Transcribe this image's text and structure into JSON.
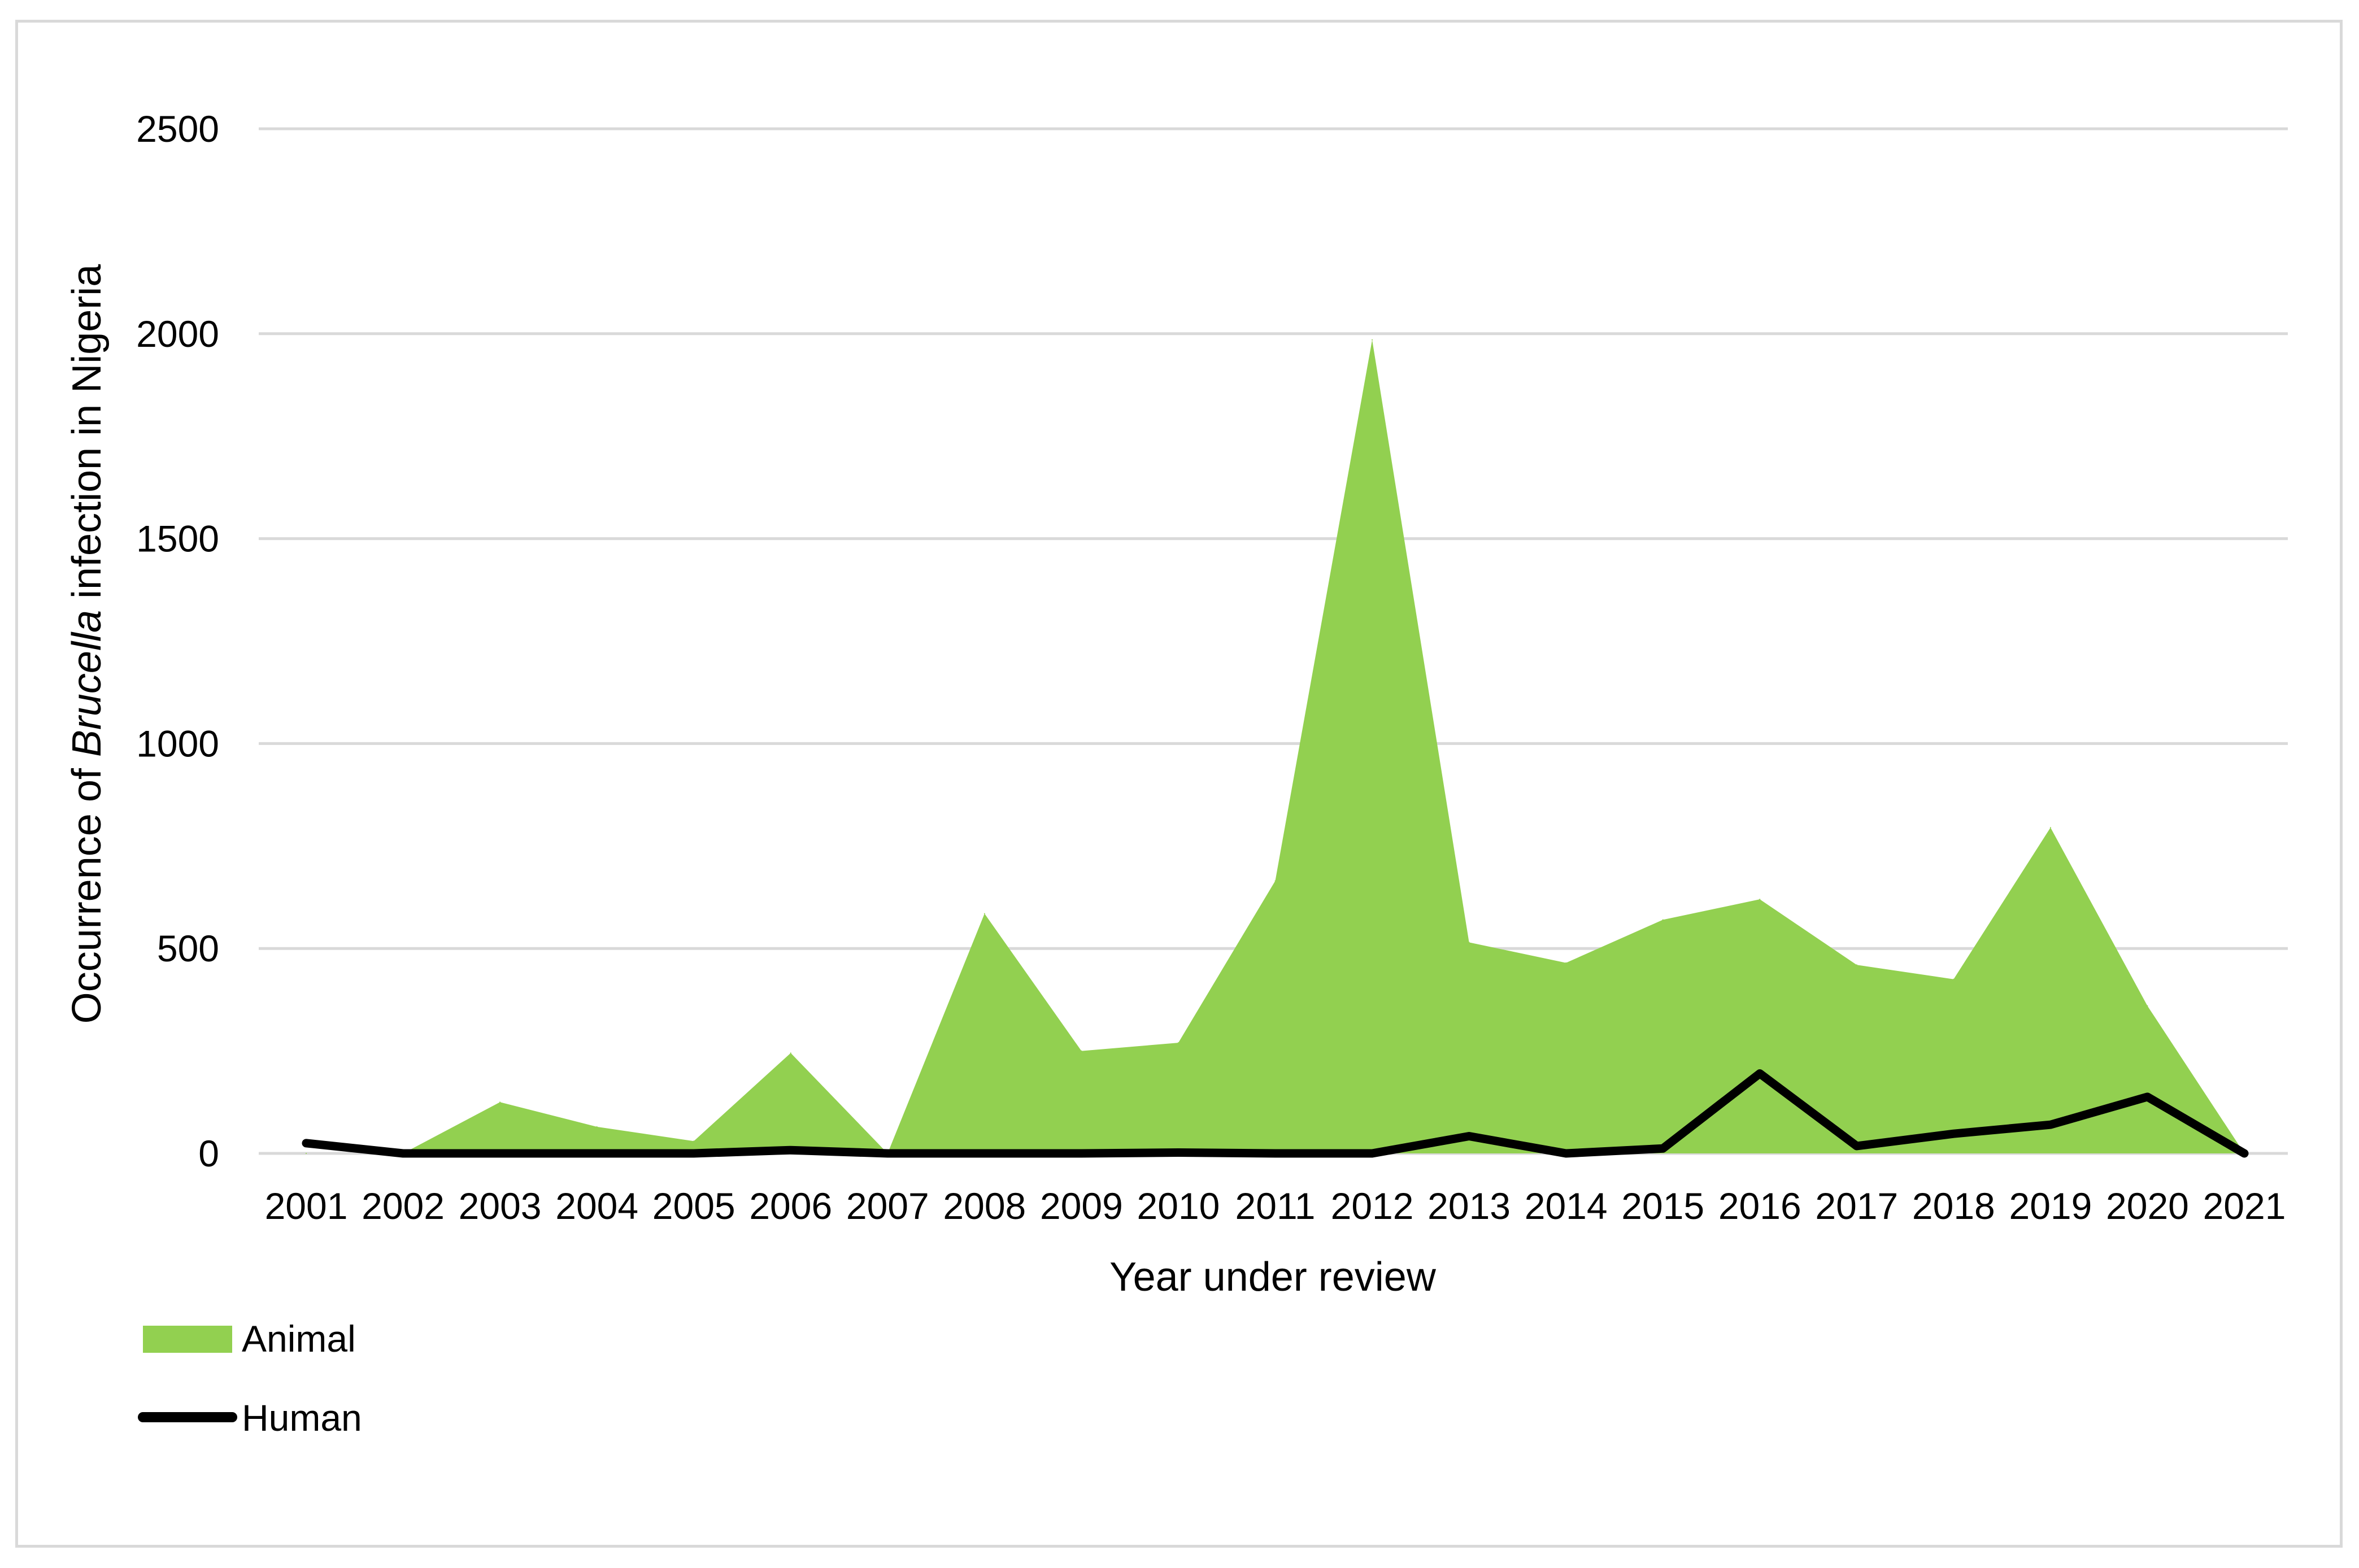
{
  "chart_data": {
    "type": "area",
    "x": [
      "2001",
      "2002",
      "2003",
      "2004",
      "2005",
      "2006",
      "2007",
      "2008",
      "2009",
      "2010",
      "2011",
      "2012",
      "2013",
      "2014",
      "2015",
      "2016",
      "2017",
      "2018",
      "2019",
      "2020",
      "2021"
    ],
    "series": [
      {
        "name": "Animal",
        "type": "area",
        "color": "#92d050",
        "values": [
          0,
          0,
          125,
          65,
          30,
          245,
          0,
          585,
          250,
          270,
          665,
          1985,
          515,
          465,
          570,
          620,
          460,
          425,
          795,
          360,
          0
        ]
      },
      {
        "name": "Human",
        "type": "line",
        "color": "#000000",
        "values": [
          25,
          0,
          0,
          0,
          0,
          8,
          0,
          0,
          0,
          2,
          0,
          0,
          42,
          0,
          12,
          195,
          18,
          48,
          70,
          138,
          0
        ]
      }
    ],
    "xlabel": "Year under review",
    "ylabel_parts": [
      {
        "text": "Occurrence of ",
        "italic": false
      },
      {
        "text": "Brucella",
        "italic": true
      },
      {
        "text": " infection in Nigeria",
        "italic": false
      }
    ],
    "yticks": [
      0,
      500,
      1000,
      1500,
      2000,
      2500
    ],
    "ylim": [
      0,
      2500
    ],
    "grid": true,
    "legend_position": "bottom-left"
  }
}
